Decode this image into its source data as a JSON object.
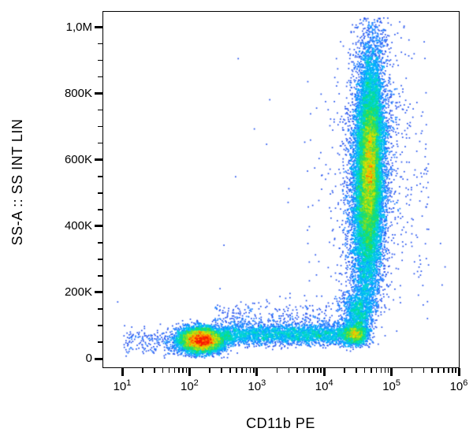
{
  "figure": {
    "x_axis_label": "CD11b PE",
    "y_axis_label": "SS-A :: SS INT LIN"
  },
  "chart_data": {
    "type": "scatter",
    "subtype": "flow-cytometry-pseudocolor-density",
    "title": "",
    "xlabel": "CD11b PE",
    "ylabel": "SS-A :: SS INT LIN",
    "x_scale": "log",
    "y_scale": "linear",
    "x_domain": [
      5.2,
      1000000
    ],
    "y_domain": [
      -26000,
      1046000
    ],
    "x_ticks": [
      10,
      100,
      1000,
      10000,
      100000,
      1000000
    ],
    "x_tick_exponents": [
      1,
      2,
      3,
      4,
      5,
      6
    ],
    "x_tick_base": "10",
    "y_ticks": [
      0,
      200000,
      400000,
      600000,
      800000,
      1000000
    ],
    "y_tick_labels": [
      "0",
      "200K",
      "400K",
      "600K",
      "800K",
      "1,0M"
    ],
    "y_minor_step": 50000,
    "grid": "off",
    "legend": "none",
    "density_palette": [
      "#1c1cd2",
      "#2150ee",
      "#1f7dff",
      "#00aaff",
      "#00cfe0",
      "#00dc9f",
      "#2edd55",
      "#7fe02a",
      "#d8e600",
      "#ffb400",
      "#ff6400",
      "#f81500"
    ],
    "populations": [
      {
        "name": "cd11b_negative_core",
        "n": 6800,
        "x": {
          "dist": "normal",
          "mean": 2.17,
          "sd": 0.165
        },
        "y": {
          "dist": "normal",
          "mean": 57000,
          "sd": 18500,
          "clip": [
            3000,
            125000
          ]
        }
      },
      {
        "name": "negative_left_tail",
        "n": 230,
        "x": {
          "dist": "uniform",
          "lo": 1.02,
          "hi": 2.0
        },
        "y": {
          "dist": "normal",
          "mean": 52000,
          "sd": 22000,
          "clip": [
            2000,
            130000
          ]
        }
      },
      {
        "name": "monocyte_band",
        "n": 3000,
        "x": {
          "dist": "uniform",
          "lo": 2.48,
          "hi": 4.58
        },
        "y": {
          "dist": "normal",
          "mean": 74000,
          "sd": 15500,
          "clip": [
            8000,
            145000
          ]
        }
      },
      {
        "name": "band_upper_fan",
        "n": 650,
        "x": {
          "dist": "uniform",
          "lo": 2.35,
          "hi": 4.55
        },
        "y": {
          "dist": "normal",
          "mean": 108000,
          "sd": 34000,
          "clip": [
            40000,
            235000
          ]
        }
      },
      {
        "name": "band_right_hotspot",
        "n": 900,
        "x": {
          "dist": "normal",
          "mean": 4.45,
          "sd": 0.09
        },
        "y": {
          "dist": "normal",
          "mean": 74000,
          "sd": 13000,
          "clip": [
            20000,
            130000
          ]
        }
      },
      {
        "name": "elbow_junction",
        "n": 1400,
        "x": {
          "dist": "normal",
          "mean": 4.5,
          "sd": 0.11
        },
        "y": {
          "dist": "normal",
          "mean": 125000,
          "sd": 48000,
          "clip": [
            35000,
            285000
          ]
        }
      },
      {
        "name": "granulocyte_fringe",
        "n": 3400,
        "lean": 0.09,
        "x": {
          "dist": "normal",
          "mean": 4.66,
          "sd": 0.175
        },
        "y": {
          "dist": "normal",
          "mean": 560000,
          "sd": 215000,
          "clip": [
            140000,
            1030000
          ]
        }
      },
      {
        "name": "granulocyte_main",
        "n": 12500,
        "lean": 0.09,
        "x": {
          "dist": "normal",
          "mean": 4.66,
          "sd": 0.105
        },
        "y": {
          "dist": "normal",
          "mean": 555000,
          "sd": 185000,
          "clip": [
            140000,
            1030000
          ]
        }
      },
      {
        "name": "granulocyte_core",
        "n": 2300,
        "lean": 0.09,
        "x": {
          "dist": "normal",
          "mean": 4.67,
          "sd": 0.065
        },
        "y": {
          "dist": "normal",
          "mean": 585000,
          "sd": 90000,
          "clip": [
            300000,
            905000
          ]
        }
      },
      {
        "name": "column_left_scatter",
        "n": 70,
        "x": {
          "dist": "uniform",
          "lo": 3.7,
          "hi": 4.35
        },
        "y": {
          "dist": "uniform",
          "lo": 170000,
          "hi": 880000
        }
      },
      {
        "name": "column_right_scatter",
        "n": 160,
        "x": {
          "dist": "uniform",
          "lo": 4.95,
          "hi": 5.55
        },
        "y": {
          "dist": "normal",
          "mean": 540000,
          "sd": 220000,
          "clip": [
            120000,
            1000000
          ]
        }
      },
      {
        "name": "sparse_background",
        "n": 24,
        "x": {
          "dist": "uniform",
          "lo": 0.9,
          "hi": 5.9
        },
        "y": {
          "dist": "uniform",
          "lo": 5000,
          "hi": 1000000
        }
      }
    ]
  }
}
